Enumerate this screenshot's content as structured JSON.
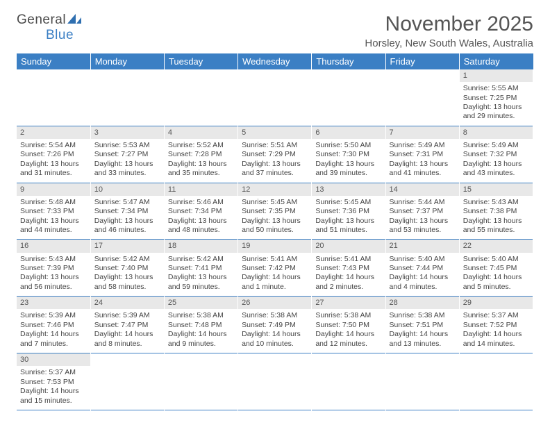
{
  "logo": {
    "general": "General",
    "blue": "Blue"
  },
  "header": {
    "month_title": "November 2025",
    "location": "Horsley, New South Wales, Australia"
  },
  "colors": {
    "header_bg": "#3b7fc4",
    "header_text": "#ffffff",
    "daynum_bg": "#e8e8e8",
    "body_text": "#444444",
    "rule": "#3b7fc4"
  },
  "weekdays": [
    "Sunday",
    "Monday",
    "Tuesday",
    "Wednesday",
    "Thursday",
    "Friday",
    "Saturday"
  ],
  "weeks": [
    [
      null,
      null,
      null,
      null,
      null,
      null,
      {
        "n": "1",
        "sunrise": "Sunrise: 5:55 AM",
        "sunset": "Sunset: 7:25 PM",
        "daylight": "Daylight: 13 hours and 29 minutes."
      }
    ],
    [
      {
        "n": "2",
        "sunrise": "Sunrise: 5:54 AM",
        "sunset": "Sunset: 7:26 PM",
        "daylight": "Daylight: 13 hours and 31 minutes."
      },
      {
        "n": "3",
        "sunrise": "Sunrise: 5:53 AM",
        "sunset": "Sunset: 7:27 PM",
        "daylight": "Daylight: 13 hours and 33 minutes."
      },
      {
        "n": "4",
        "sunrise": "Sunrise: 5:52 AM",
        "sunset": "Sunset: 7:28 PM",
        "daylight": "Daylight: 13 hours and 35 minutes."
      },
      {
        "n": "5",
        "sunrise": "Sunrise: 5:51 AM",
        "sunset": "Sunset: 7:29 PM",
        "daylight": "Daylight: 13 hours and 37 minutes."
      },
      {
        "n": "6",
        "sunrise": "Sunrise: 5:50 AM",
        "sunset": "Sunset: 7:30 PM",
        "daylight": "Daylight: 13 hours and 39 minutes."
      },
      {
        "n": "7",
        "sunrise": "Sunrise: 5:49 AM",
        "sunset": "Sunset: 7:31 PM",
        "daylight": "Daylight: 13 hours and 41 minutes."
      },
      {
        "n": "8",
        "sunrise": "Sunrise: 5:49 AM",
        "sunset": "Sunset: 7:32 PM",
        "daylight": "Daylight: 13 hours and 43 minutes."
      }
    ],
    [
      {
        "n": "9",
        "sunrise": "Sunrise: 5:48 AM",
        "sunset": "Sunset: 7:33 PM",
        "daylight": "Daylight: 13 hours and 44 minutes."
      },
      {
        "n": "10",
        "sunrise": "Sunrise: 5:47 AM",
        "sunset": "Sunset: 7:34 PM",
        "daylight": "Daylight: 13 hours and 46 minutes."
      },
      {
        "n": "11",
        "sunrise": "Sunrise: 5:46 AM",
        "sunset": "Sunset: 7:34 PM",
        "daylight": "Daylight: 13 hours and 48 minutes."
      },
      {
        "n": "12",
        "sunrise": "Sunrise: 5:45 AM",
        "sunset": "Sunset: 7:35 PM",
        "daylight": "Daylight: 13 hours and 50 minutes."
      },
      {
        "n": "13",
        "sunrise": "Sunrise: 5:45 AM",
        "sunset": "Sunset: 7:36 PM",
        "daylight": "Daylight: 13 hours and 51 minutes."
      },
      {
        "n": "14",
        "sunrise": "Sunrise: 5:44 AM",
        "sunset": "Sunset: 7:37 PM",
        "daylight": "Daylight: 13 hours and 53 minutes."
      },
      {
        "n": "15",
        "sunrise": "Sunrise: 5:43 AM",
        "sunset": "Sunset: 7:38 PM",
        "daylight": "Daylight: 13 hours and 55 minutes."
      }
    ],
    [
      {
        "n": "16",
        "sunrise": "Sunrise: 5:43 AM",
        "sunset": "Sunset: 7:39 PM",
        "daylight": "Daylight: 13 hours and 56 minutes."
      },
      {
        "n": "17",
        "sunrise": "Sunrise: 5:42 AM",
        "sunset": "Sunset: 7:40 PM",
        "daylight": "Daylight: 13 hours and 58 minutes."
      },
      {
        "n": "18",
        "sunrise": "Sunrise: 5:42 AM",
        "sunset": "Sunset: 7:41 PM",
        "daylight": "Daylight: 13 hours and 59 minutes."
      },
      {
        "n": "19",
        "sunrise": "Sunrise: 5:41 AM",
        "sunset": "Sunset: 7:42 PM",
        "daylight": "Daylight: 14 hours and 1 minute."
      },
      {
        "n": "20",
        "sunrise": "Sunrise: 5:41 AM",
        "sunset": "Sunset: 7:43 PM",
        "daylight": "Daylight: 14 hours and 2 minutes."
      },
      {
        "n": "21",
        "sunrise": "Sunrise: 5:40 AM",
        "sunset": "Sunset: 7:44 PM",
        "daylight": "Daylight: 14 hours and 4 minutes."
      },
      {
        "n": "22",
        "sunrise": "Sunrise: 5:40 AM",
        "sunset": "Sunset: 7:45 PM",
        "daylight": "Daylight: 14 hours and 5 minutes."
      }
    ],
    [
      {
        "n": "23",
        "sunrise": "Sunrise: 5:39 AM",
        "sunset": "Sunset: 7:46 PM",
        "daylight": "Daylight: 14 hours and 7 minutes."
      },
      {
        "n": "24",
        "sunrise": "Sunrise: 5:39 AM",
        "sunset": "Sunset: 7:47 PM",
        "daylight": "Daylight: 14 hours and 8 minutes."
      },
      {
        "n": "25",
        "sunrise": "Sunrise: 5:38 AM",
        "sunset": "Sunset: 7:48 PM",
        "daylight": "Daylight: 14 hours and 9 minutes."
      },
      {
        "n": "26",
        "sunrise": "Sunrise: 5:38 AM",
        "sunset": "Sunset: 7:49 PM",
        "daylight": "Daylight: 14 hours and 10 minutes."
      },
      {
        "n": "27",
        "sunrise": "Sunrise: 5:38 AM",
        "sunset": "Sunset: 7:50 PM",
        "daylight": "Daylight: 14 hours and 12 minutes."
      },
      {
        "n": "28",
        "sunrise": "Sunrise: 5:38 AM",
        "sunset": "Sunset: 7:51 PM",
        "daylight": "Daylight: 14 hours and 13 minutes."
      },
      {
        "n": "29",
        "sunrise": "Sunrise: 5:37 AM",
        "sunset": "Sunset: 7:52 PM",
        "daylight": "Daylight: 14 hours and 14 minutes."
      }
    ],
    [
      {
        "n": "30",
        "sunrise": "Sunrise: 5:37 AM",
        "sunset": "Sunset: 7:53 PM",
        "daylight": "Daylight: 14 hours and 15 minutes."
      },
      null,
      null,
      null,
      null,
      null,
      null
    ]
  ]
}
